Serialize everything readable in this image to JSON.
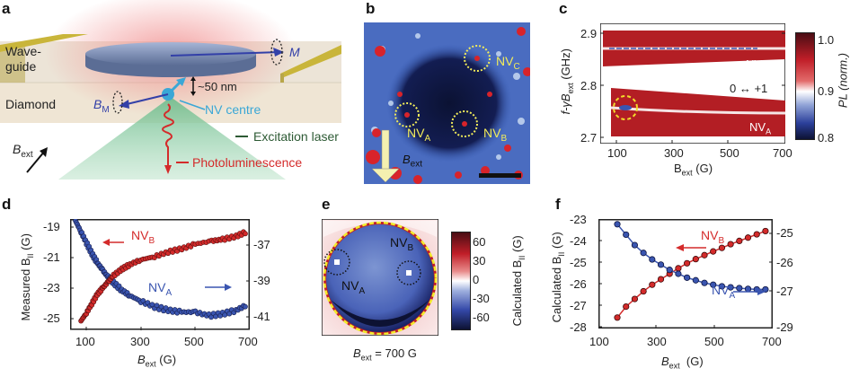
{
  "panels": {
    "a": {
      "label": "a",
      "waveguide": "Wave-\nguide",
      "waveguide_l1": "Wave-",
      "waveguide_l2": "guide",
      "diamond": "Diamond",
      "m_label": "M",
      "bm_label": "B",
      "bm_sub": "M",
      "distance": "~50 nm",
      "nv_centre": "NV centre",
      "excitation": "Excitation laser",
      "photolum": "Photoluminescence",
      "bext": "B",
      "bext_sub": "ext",
      "colors": {
        "waveguide": "#c9b53a",
        "diamond": "#ede3d3",
        "disc": "#7b8fb5",
        "laser": "#8fcaa6",
        "pl": "#d42b2b",
        "nv": "#3aa7d6",
        "arrow": "#3340a8",
        "glow": "#f0a0a0"
      }
    },
    "b": {
      "label": "b",
      "nv_a": "NV",
      "nv_a_sub": "A",
      "nv_b": "NV",
      "nv_b_sub": "B",
      "nv_c": "NV",
      "nv_c_sub": "C",
      "bext": "B",
      "bext_sub": "ext",
      "colors": {
        "bg": "#3a5fb8",
        "dark": "#0e1640",
        "spot": "#d8232a",
        "circle": "#f2ec5a"
      }
    },
    "c": {
      "label": "c",
      "ylabel_main": "f-γB",
      "ylabel_sub": "ext",
      "ylabel_unit": " (GHz)",
      "xlabel": "B",
      "xlabel_sub": "ext",
      "xlabel_unit": " (G)",
      "yticks": [
        "2.9",
        "2.8",
        "2.7"
      ],
      "xticks": [
        "100",
        "300",
        "500",
        "700"
      ],
      "nv_ref": "NV",
      "nv_ref_sub": "ref",
      "nv_a": "NV",
      "nv_a_sub": "A",
      "transition": "0 ↔ +1",
      "cbar_ticks": [
        "1.0",
        "0.9",
        "0.8"
      ],
      "cbar_label": "PL (norm.)"
    },
    "d": {
      "label": "d",
      "ylabel": "Measured B",
      "ylabel_sub": "II",
      "ylabel_unit": " (G)",
      "xlabel": "B",
      "xlabel_sub": "ext",
      "xlabel_unit": " (G)",
      "yticks_left": [
        "-19",
        "-21",
        "-23",
        "-25"
      ],
      "yticks_right": [
        "-37",
        "-39",
        "-41"
      ],
      "xticks": [
        "100",
        "300",
        "500",
        "700"
      ],
      "nv_b": "NV",
      "nv_b_sub": "B",
      "nv_a": "NV",
      "nv_a_sub": "A"
    },
    "e": {
      "label": "e",
      "nv_a": "NV",
      "nv_a_sub": "A",
      "nv_b": "NV",
      "nv_b_sub": "B",
      "cbar_ticks": [
        "60",
        "30",
        "0",
        "-30",
        "-60"
      ],
      "cbar_label": "Calculated B",
      "cbar_label_sub": "II",
      "cbar_label_unit": " (G)",
      "caption": "B",
      "caption_sub": "ext",
      "caption_value": " = 700 G"
    },
    "f": {
      "label": "f",
      "ylabel": "Calculated B",
      "ylabel_sub": "II",
      "ylabel_unit": " (G)",
      "xlabel": "B",
      "xlabel_sub": "ext",
      "xlabel_unit": "  (G)",
      "yticks_left": [
        "-23",
        "-24",
        "-25",
        "-26",
        "-27",
        "-28"
      ],
      "yticks_right": [
        "-25",
        "-26",
        "-27",
        "-29"
      ],
      "xticks": [
        "100",
        "300",
        "500",
        "700"
      ],
      "nv_b": "NV",
      "nv_b_sub": "B",
      "nv_a": "NV",
      "nv_a_sub": "A"
    }
  },
  "chart_data": [
    {
      "panel": "c",
      "type": "heatmap",
      "title": "",
      "xlabel": "B_ext (G)",
      "ylabel": "f-γB_ext (GHz)",
      "xlim": [
        40,
        700
      ],
      "ylim": [
        2.7,
        2.92
      ],
      "xticks": [
        100,
        300,
        500,
        700
      ],
      "yticks": [
        2.7,
        2.8,
        2.9
      ],
      "colorbar": {
        "label": "PL (norm.)",
        "range": [
          0.8,
          1.02
        ],
        "ticks": [
          0.8,
          0.9,
          1.0
        ]
      },
      "annotations": [
        "NV_ref",
        "NV_A",
        "0 ↔ +1"
      ],
      "series": [
        {
          "name": "NV_ref resonance",
          "x": [
            40,
            700
          ],
          "y": [
            2.87,
            2.87
          ]
        },
        {
          "name": "NV_A resonance",
          "x": [
            70,
            150,
            300,
            500,
            700
          ],
          "y": [
            2.765,
            2.763,
            2.76,
            2.757,
            2.754
          ]
        }
      ]
    },
    {
      "panel": "d",
      "type": "scatter",
      "xlabel": "B_ext (G)",
      "ylabel": "Measured B_II (G)",
      "xlim": [
        40,
        700
      ],
      "ylim_left": [
        -25.6,
        -18.5
      ],
      "ylim_right": [
        -41.6,
        -35.5
      ],
      "xticks": [
        100,
        300,
        500,
        700
      ],
      "yticks_left": [
        -19,
        -21,
        -23,
        -25
      ],
      "yticks_right": [
        -37,
        -39,
        -41
      ],
      "series": [
        {
          "name": "NV_B",
          "axis": "left",
          "color": "#d42b2b",
          "x": [
            80,
            100,
            120,
            140,
            160,
            180,
            200,
            230,
            260,
            300,
            350,
            400,
            450,
            500,
            560,
            600,
            650,
            690
          ],
          "y": [
            -25.0,
            -24.5,
            -23.9,
            -23.3,
            -22.9,
            -22.5,
            -22.1,
            -21.7,
            -21.4,
            -21.1,
            -20.9,
            -20.6,
            -20.4,
            -20.1,
            -19.9,
            -19.8,
            -19.6,
            -19.3
          ]
        },
        {
          "name": "NV_A",
          "axis": "right",
          "color": "#3a55b0",
          "x": [
            60,
            80,
            100,
            120,
            140,
            160,
            180,
            200,
            230,
            260,
            300,
            350,
            400,
            450,
            500,
            550,
            600,
            650,
            690
          ],
          "y": [
            -35.6,
            -36.2,
            -36.8,
            -37.4,
            -37.9,
            -38.3,
            -38.7,
            -39.0,
            -39.4,
            -39.7,
            -40.0,
            -40.3,
            -40.5,
            -40.6,
            -40.6,
            -40.8,
            -40.7,
            -40.5,
            -40.2
          ]
        }
      ]
    },
    {
      "panel": "e",
      "type": "heatmap",
      "title": "B_ext = 700 G",
      "colorbar": {
        "label": "Calculated B_II (G)",
        "range": [
          -75,
          75
        ],
        "ticks": [
          60,
          30,
          0,
          -30,
          -60
        ]
      },
      "annotations": [
        "NV_A",
        "NV_B"
      ]
    },
    {
      "panel": "f",
      "type": "line",
      "xlabel": "B_ext (G)",
      "ylabel": "Calculated B_II (G)",
      "xlim": [
        100,
        700
      ],
      "ylim_left": [
        -28,
        -23
      ],
      "ylim_right": [
        -29,
        -24.8
      ],
      "xticks": [
        100,
        300,
        500,
        700
      ],
      "yticks_left": [
        -23,
        -24,
        -25,
        -26,
        -27,
        -28
      ],
      "yticks_right": [
        -25,
        -26,
        -27,
        -29
      ],
      "series": [
        {
          "name": "NV_B",
          "axis": "left",
          "color": "#d42b2b",
          "x": [
            165,
            195,
            225,
            255,
            285,
            315,
            345,
            375,
            405,
            435,
            465,
            495,
            525,
            555,
            585,
            615,
            645,
            675
          ],
          "y": [
            -27.5,
            -27.0,
            -26.65,
            -26.3,
            -26.0,
            -25.75,
            -25.5,
            -25.25,
            -25.02,
            -24.83,
            -24.65,
            -24.48,
            -24.32,
            -24.15,
            -24.0,
            -23.85,
            -23.7,
            -23.55
          ]
        },
        {
          "name": "NV_A",
          "axis": "right",
          "color": "#3a55b0",
          "x": [
            165,
            195,
            225,
            255,
            285,
            315,
            345,
            375,
            405,
            435,
            465,
            495,
            525,
            555,
            585,
            615,
            645,
            675
          ],
          "y": [
            -25.0,
            -25.4,
            -25.8,
            -26.1,
            -26.35,
            -26.55,
            -26.75,
            -26.9,
            -27.05,
            -27.15,
            -27.25,
            -27.32,
            -27.38,
            -27.42,
            -27.45,
            -27.48,
            -27.5,
            -27.5
          ]
        }
      ]
    }
  ]
}
